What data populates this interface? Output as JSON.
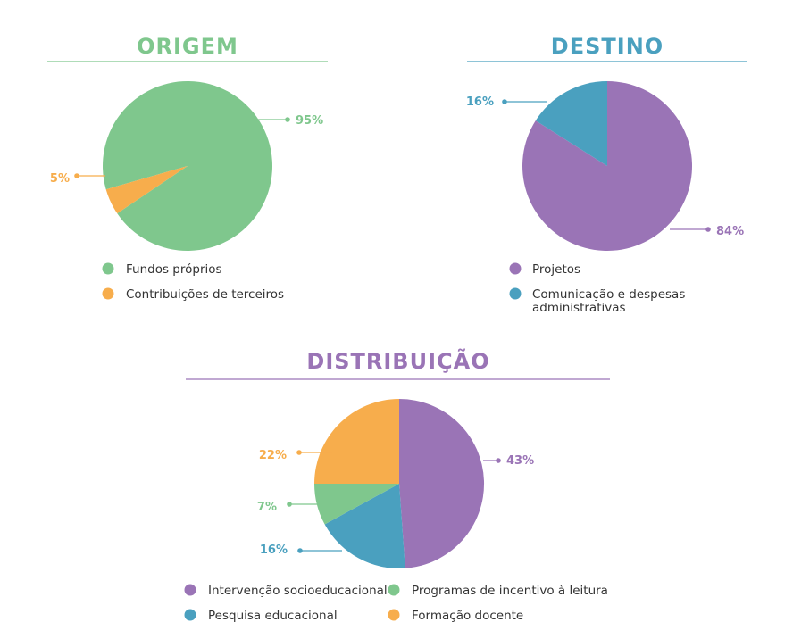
{
  "chart_data": [
    {
      "type": "pie",
      "title": "ORIGEM",
      "title_color": "#7fc78d",
      "slices": [
        {
          "label": "Fundos próprios",
          "value": 95,
          "display": "95%",
          "color": "#7fc78d"
        },
        {
          "label": "Contribuições de terceiros",
          "value": 5,
          "display": "5%",
          "color": "#f7ad4c"
        }
      ]
    },
    {
      "type": "pie",
      "title": "DESTINO",
      "title_color": "#4aa0bf",
      "slices": [
        {
          "label": "Projetos",
          "value": 84,
          "display": "84%",
          "color": "#9a74b6"
        },
        {
          "label": "Comunicação e despesas administrativas",
          "label_lines": [
            "Comunicação e despesas",
            "administrativas"
          ],
          "value": 16,
          "display": "16%",
          "color": "#4aa0bf"
        }
      ]
    },
    {
      "type": "pie",
      "title": "DISTRIBUIÇÃO",
      "title_color": "#9a74b6",
      "slices": [
        {
          "label": "Intervenção socioeducacional",
          "value": 43,
          "display": "43%",
          "color": "#9a74b6"
        },
        {
          "label": "Pesquisa educacional",
          "value": 16,
          "display": "16%",
          "color": "#4aa0bf"
        },
        {
          "label": "Programas de incentivo à leitura",
          "value": 7,
          "display": "7%",
          "color": "#7fc78d"
        },
        {
          "label": "Formação docente",
          "value": 22,
          "display": "22%",
          "color": "#f7ad4c"
        }
      ]
    }
  ]
}
